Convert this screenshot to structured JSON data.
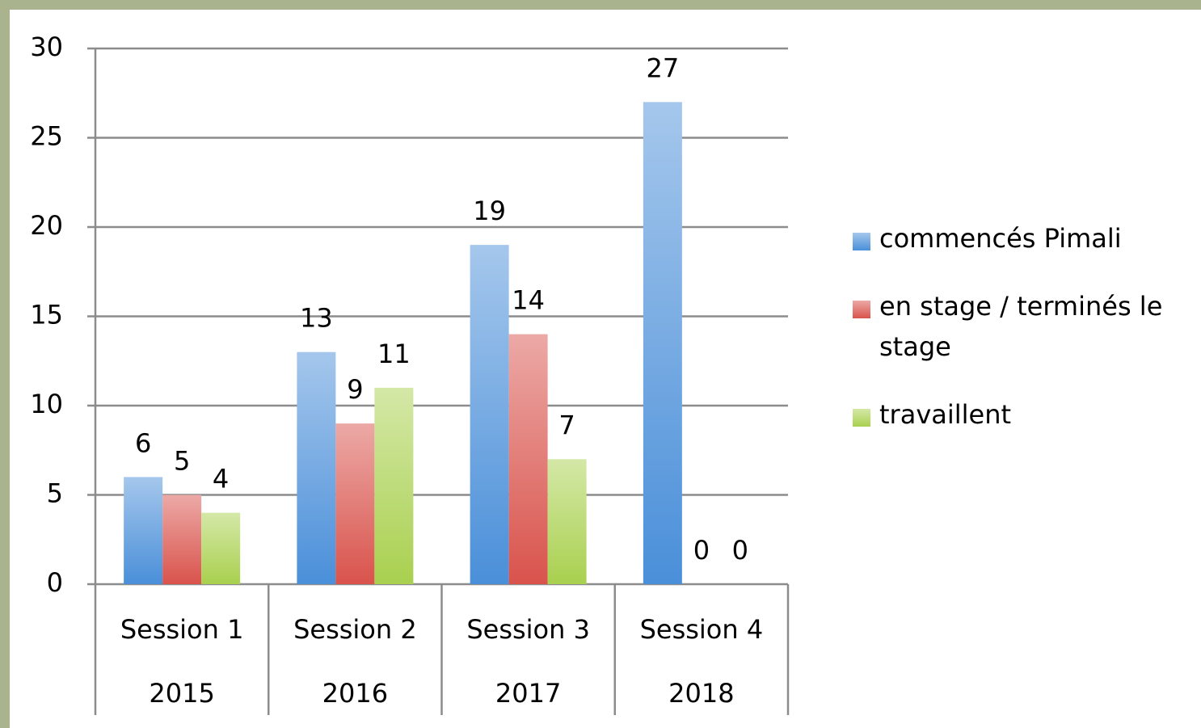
{
  "chart_data": {
    "type": "bar",
    "categories": [
      "Session 1",
      "Session 2",
      "Session 3",
      "Session 4"
    ],
    "category_groups": [
      "2015",
      "2016",
      "2017",
      "2018"
    ],
    "series": [
      {
        "name": "commencés Pimali",
        "color": "#4a8fd9",
        "values": [
          6,
          13,
          19,
          27
        ]
      },
      {
        "name": "en stage / terminés le stage",
        "color": "#d9534c",
        "values": [
          5,
          9,
          14,
          0
        ]
      },
      {
        "name": "travaillent",
        "color": "#a9d04f",
        "values": [
          4,
          11,
          7,
          0
        ]
      }
    ],
    "ylim": [
      0,
      30
    ],
    "yticks": [
      0,
      5,
      10,
      15,
      20,
      25,
      30
    ],
    "grid": true,
    "legend": "right"
  }
}
